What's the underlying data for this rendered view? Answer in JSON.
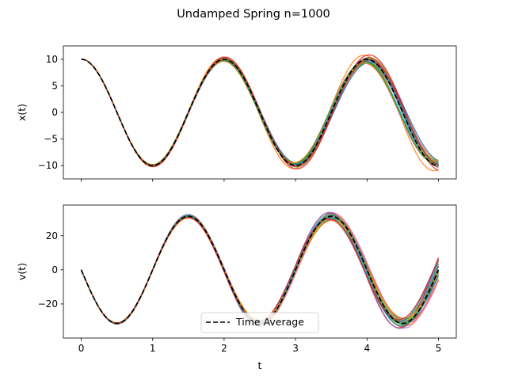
{
  "figure": {
    "title": "Undamped Spring n=1000"
  },
  "chart_data": [
    {
      "type": "line",
      "ylabel": "x(t)",
      "xlabel": "",
      "xlim": [
        -0.25,
        5.25
      ],
      "ylim": [
        -12.5,
        12.5
      ],
      "xticks": [
        0,
        1,
        2,
        3,
        4,
        5
      ],
      "xtick_labels_visible": false,
      "yticks": [
        10,
        5,
        0,
        -5,
        -10
      ],
      "ytick_labels": [
        "10",
        "5",
        "0",
        "−5",
        "−10"
      ],
      "grid": false,
      "ensemble": {
        "trajectories_shown": 1000,
        "sample_count_drawn": 24,
        "initial_value": 10,
        "min_envelope": {
          "t": [
            0,
            1,
            2,
            3,
            4,
            5
          ],
          "values": [
            10,
            -10.6,
            8.5,
            -10.5,
            8.7,
            -11.3
          ]
        },
        "max_envelope": {
          "t": [
            0,
            1,
            2,
            3,
            4,
            5
          ],
          "values": [
            10,
            -9.5,
            11.0,
            -8.8,
            11.3,
            -8.2
          ]
        }
      },
      "series": [
        {
          "name": "Time Average",
          "style": "dashed",
          "color": "#000000",
          "x": [
            0,
            0.25,
            0.5,
            0.75,
            1,
            1.25,
            1.5,
            1.75,
            2,
            2.25,
            2.5,
            2.75,
            3,
            3.25,
            3.5,
            3.75,
            4,
            4.25,
            4.5,
            4.75,
            5
          ],
          "values": [
            10,
            7.1,
            0,
            -7.1,
            -10,
            -7.1,
            0,
            7.1,
            10,
            7.1,
            0,
            -7.1,
            -10,
            -7.1,
            0,
            7.1,
            10,
            7.1,
            0,
            -7.1,
            -10
          ]
        }
      ]
    },
    {
      "type": "line",
      "ylabel": "v(t)",
      "xlabel": "t",
      "xlim": [
        -0.25,
        5.25
      ],
      "ylim": [
        -40,
        38
      ],
      "xticks": [
        0,
        1,
        2,
        3,
        4,
        5
      ],
      "xtick_labels": [
        "0",
        "1",
        "2",
        "3",
        "4",
        "5"
      ],
      "yticks": [
        20,
        0,
        -20
      ],
      "ytick_labels": [
        "20",
        "0",
        "−20"
      ],
      "grid": false,
      "legend": {
        "position": "lower-center",
        "entries": [
          "Time Average"
        ]
      },
      "ensemble": {
        "trajectories_shown": 1000,
        "sample_count_drawn": 24,
        "initial_value": 0,
        "min_envelope": {
          "t": [
            0.5,
            1.5,
            2.5,
            3.5,
            4.5
          ],
          "values": [
            -33,
            29,
            -33,
            27,
            -36
          ]
        },
        "max_envelope": {
          "t": [
            0.5,
            1.5,
            2.5,
            3.5,
            4.5
          ],
          "values": [
            -29.5,
            34.5,
            -29,
            35.5,
            -26
          ]
        }
      },
      "series": [
        {
          "name": "Time Average",
          "style": "dashed",
          "color": "#000000",
          "x": [
            0,
            0.25,
            0.5,
            0.75,
            1,
            1.25,
            1.5,
            1.75,
            2,
            2.25,
            2.5,
            2.75,
            3,
            3.25,
            3.5,
            3.75,
            4,
            4.25,
            4.5,
            4.75,
            5
          ],
          "values": [
            0,
            -22.2,
            -31.4,
            -22.2,
            0,
            22.2,
            31.4,
            22.2,
            0,
            -22.2,
            -31.4,
            -22.2,
            0,
            22.2,
            31.4,
            22.2,
            0,
            -22.2,
            -31.4,
            -22.2,
            0
          ]
        }
      ]
    }
  ],
  "palette": [
    "#1f77b4",
    "#ff7f0e",
    "#2ca02c",
    "#d62728",
    "#9467bd",
    "#8c564b",
    "#e377c2",
    "#7f7f7f",
    "#bcbd22",
    "#17becf"
  ]
}
